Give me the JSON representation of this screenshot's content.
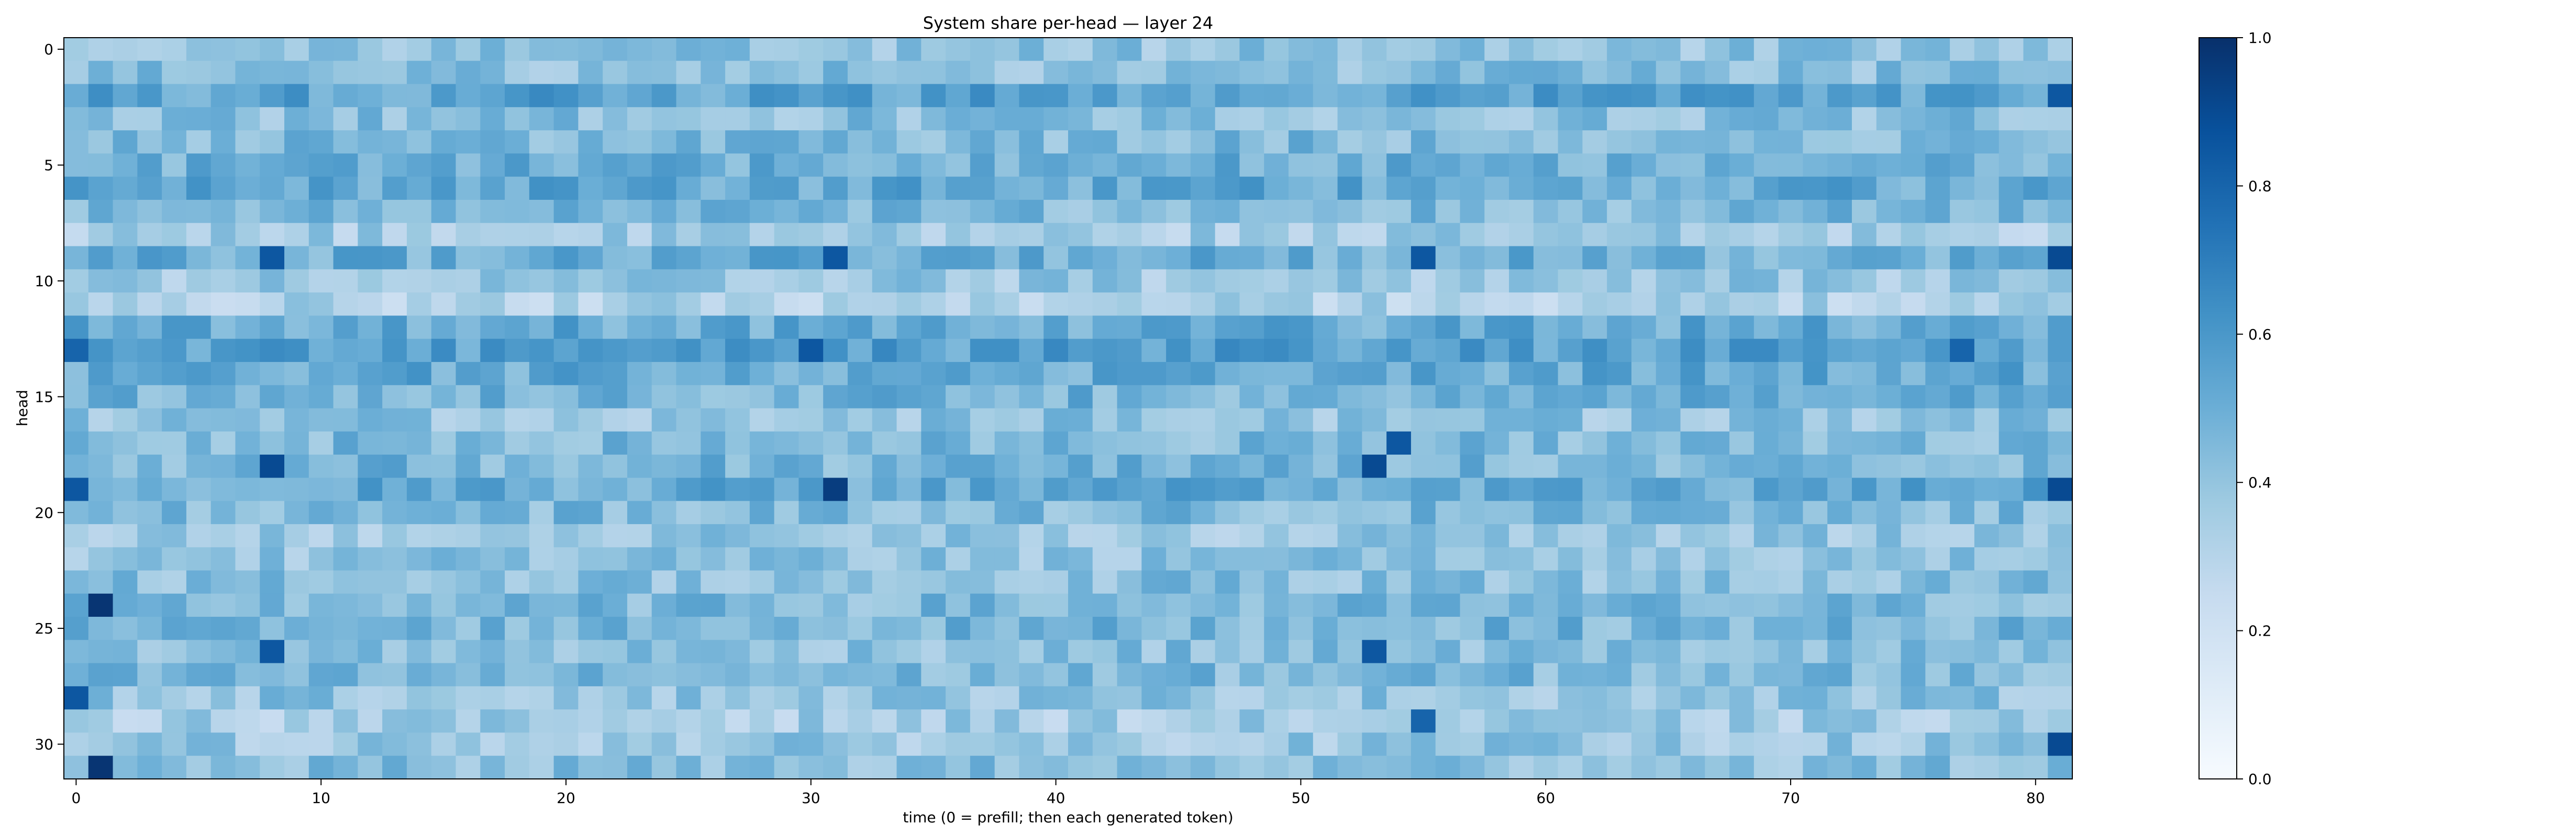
{
  "chart_data": {
    "type": "heatmap",
    "title": "System share per-head — layer 24",
    "xlabel": "time (0 = prefill; then each generated token)",
    "ylabel": "head",
    "n_cols": 82,
    "n_rows": 32,
    "x_ticks": [
      0,
      10,
      20,
      30,
      40,
      50,
      60,
      70,
      80
    ],
    "y_ticks": [
      0,
      5,
      10,
      15,
      20,
      25,
      30
    ],
    "colorbar": {
      "vmin": 0.0,
      "vmax": 1.0,
      "ticks": [
        "0.0",
        "0.2",
        "0.4",
        "0.6",
        "0.8",
        "1.0"
      ]
    },
    "colormap": "Blues",
    "colors": {
      "low": "#f7fbff",
      "mid": "#6baed6",
      "high": "#08306b"
    },
    "row_means": [
      0.4,
      0.42,
      0.55,
      0.42,
      0.45,
      0.5,
      0.52,
      0.45,
      0.35,
      0.5,
      0.38,
      0.32,
      0.52,
      0.56,
      0.52,
      0.48,
      0.4,
      0.45,
      0.47,
      0.52,
      0.45,
      0.38,
      0.4,
      0.42,
      0.45,
      0.47,
      0.42,
      0.45,
      0.4,
      0.35,
      0.38,
      0.42
    ],
    "highlights": [
      {
        "row": 2,
        "col": 81,
        "value": 0.85
      },
      {
        "row": 9,
        "col": 8,
        "value": 0.85
      },
      {
        "row": 9,
        "col": 31,
        "value": 0.85
      },
      {
        "row": 9,
        "col": 55,
        "value": 0.85
      },
      {
        "row": 9,
        "col": 81,
        "value": 0.9
      },
      {
        "row": 13,
        "col": 0,
        "value": 0.8
      },
      {
        "row": 13,
        "col": 30,
        "value": 0.85
      },
      {
        "row": 13,
        "col": 77,
        "value": 0.8
      },
      {
        "row": 17,
        "col": 54,
        "value": 0.85
      },
      {
        "row": 18,
        "col": 8,
        "value": 0.9
      },
      {
        "row": 18,
        "col": 53,
        "value": 0.9
      },
      {
        "row": 19,
        "col": 31,
        "value": 0.95
      },
      {
        "row": 19,
        "col": 0,
        "value": 0.85
      },
      {
        "row": 19,
        "col": 81,
        "value": 0.9
      },
      {
        "row": 24,
        "col": 1,
        "value": 0.98
      },
      {
        "row": 26,
        "col": 8,
        "value": 0.85
      },
      {
        "row": 26,
        "col": 53,
        "value": 0.85
      },
      {
        "row": 28,
        "col": 0,
        "value": 0.85
      },
      {
        "row": 29,
        "col": 55,
        "value": 0.8
      },
      {
        "row": 30,
        "col": 81,
        "value": 0.9
      },
      {
        "row": 31,
        "col": 1,
        "value": 0.98
      }
    ],
    "grid": false
  }
}
